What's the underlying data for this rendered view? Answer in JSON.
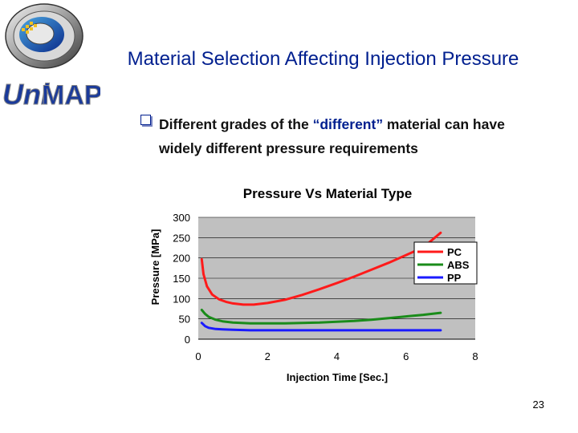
{
  "slide": {
    "title": "Material Selection Affecting Injection Pressure",
    "bullet": {
      "pre": "Different grades of the ",
      "highlight": "“different”",
      "post": " material can have widely different pressure requirements"
    },
    "page_number": "23"
  },
  "logo": {
    "text_uni": "Uni",
    "text_map": "MAP",
    "icon": "unimap-crest-logo"
  },
  "colors": {
    "title": "#001f8f",
    "plot_bg": "#c0c0c0",
    "PC": "#ff1a1a",
    "ABS": "#1a8c1a",
    "PP": "#1a1aff"
  },
  "chart_data": {
    "type": "line",
    "title": "Pressure Vs Material Type",
    "xlabel": "Injection Time [Sec.]",
    "ylabel": "Pressure [MPa]",
    "xlim": [
      0,
      8
    ],
    "ylim": [
      0,
      300
    ],
    "xticks": [
      0,
      2,
      4,
      6,
      8
    ],
    "yticks": [
      0,
      50,
      100,
      150,
      200,
      250,
      300
    ],
    "grid": "horizontal",
    "legend_position": "right",
    "series": [
      {
        "name": "PC",
        "color": "#ff1a1a",
        "x": [
          0.1,
          0.15,
          0.25,
          0.4,
          0.6,
          0.8,
          1.0,
          1.3,
          1.6,
          2.0,
          2.5,
          3.0,
          3.5,
          4.0,
          4.5,
          5.0,
          5.5,
          6.0,
          6.5,
          7.0
        ],
        "y": [
          197,
          160,
          130,
          110,
          98,
          92,
          88,
          85,
          85,
          89,
          97,
          109,
          123,
          138,
          154,
          171,
          188,
          207,
          226,
          262
        ]
      },
      {
        "name": "ABS",
        "color": "#1a8c1a",
        "x": [
          0.1,
          0.2,
          0.3,
          0.5,
          0.7,
          1.0,
          1.5,
          2.0,
          2.5,
          3.0,
          3.5,
          4.0,
          4.5,
          5.0,
          5.5,
          6.0,
          6.5,
          7.0
        ],
        "y": [
          72,
          62,
          55,
          48,
          44,
          41,
          39,
          39,
          39,
          40,
          41,
          43,
          45,
          48,
          52,
          56,
          60,
          65
        ]
      },
      {
        "name": "PP",
        "color": "#1a1aff",
        "x": [
          0.1,
          0.2,
          0.3,
          0.5,
          0.7,
          1.0,
          1.5,
          2.0,
          2.5,
          3.0,
          4.0,
          5.0,
          6.0,
          7.0
        ],
        "y": [
          40,
          32,
          28,
          25,
          24,
          23,
          22,
          22,
          22,
          22,
          22,
          22,
          22,
          22
        ]
      }
    ]
  }
}
